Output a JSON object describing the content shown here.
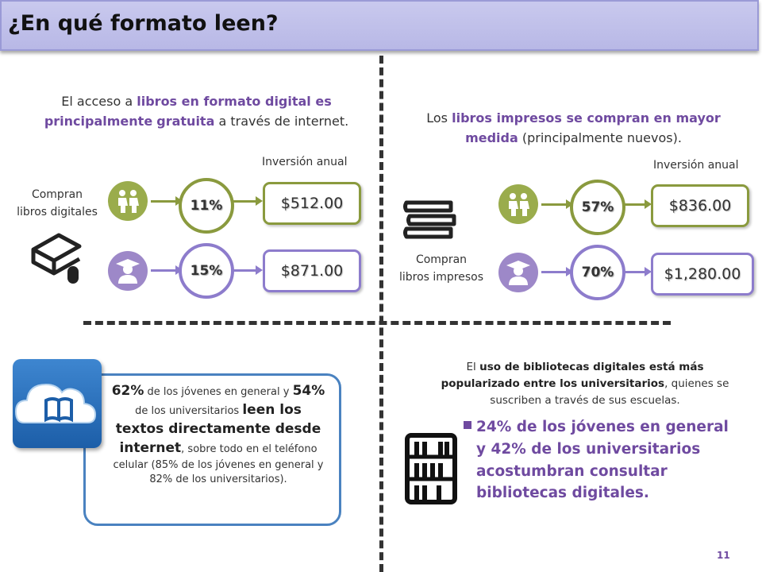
{
  "title": "¿En qué formato leen?",
  "digital": {
    "text_1": "El acceso a ",
    "text_2": "libros en formato digital es principalmente",
    "text_3": "gratuita",
    "text_4": " a través de internet.",
    "investment_label": "Inversión anual",
    "buyers_label_1": "Compran",
    "buyers_label_2": "libros digitales",
    "rows": [
      {
        "percent": "11%",
        "amount": "$512.00",
        "group_icon": "youth-icon"
      },
      {
        "percent": "15%",
        "amount": "$871.00",
        "group_icon": "graduate-icon"
      }
    ]
  },
  "printed": {
    "text_1": "Los ",
    "text_2": "libros impresos se compran en mayor medida",
    "text_3": " (principalmente nuevos).",
    "investment_label": "Inversión anual",
    "buyers_label_1": "Compran",
    "buyers_label_2": "libros impresos",
    "rows": [
      {
        "percent": "57%",
        "amount": "$836.00",
        "group_icon": "youth-icon"
      },
      {
        "percent": "70%",
        "amount": "$1,280.00",
        "group_icon": "graduate-icon"
      }
    ]
  },
  "internet": {
    "p1_big": "62%",
    "p1_rest": " de los jóvenes en general y",
    "p2_big": "54%",
    "p2_rest": " de los universitarios ",
    "p2_bold": "leen los textos directamente desde internet",
    "p3": ", sobre todo en el teléfono celular (85% de los jóvenes en general y 82% de los universitarios)."
  },
  "libraries": {
    "intro_1": "El ",
    "intro_bold": "uso de bibliotecas digitales está más popularizado entre los universitarios",
    "intro_2": ", quienes se suscriben a través de sus escuelas.",
    "bullet": "24% de los jóvenes en general y 42% de los universitarios acostumbran consultar bibliotecas digitales."
  },
  "page_number": "11",
  "colors": {
    "accent_purple": "#6f4aa0",
    "accent_green": "#8a9a3e",
    "ring_purple": "#8d7ccc",
    "callout_blue": "#4a82c0"
  }
}
